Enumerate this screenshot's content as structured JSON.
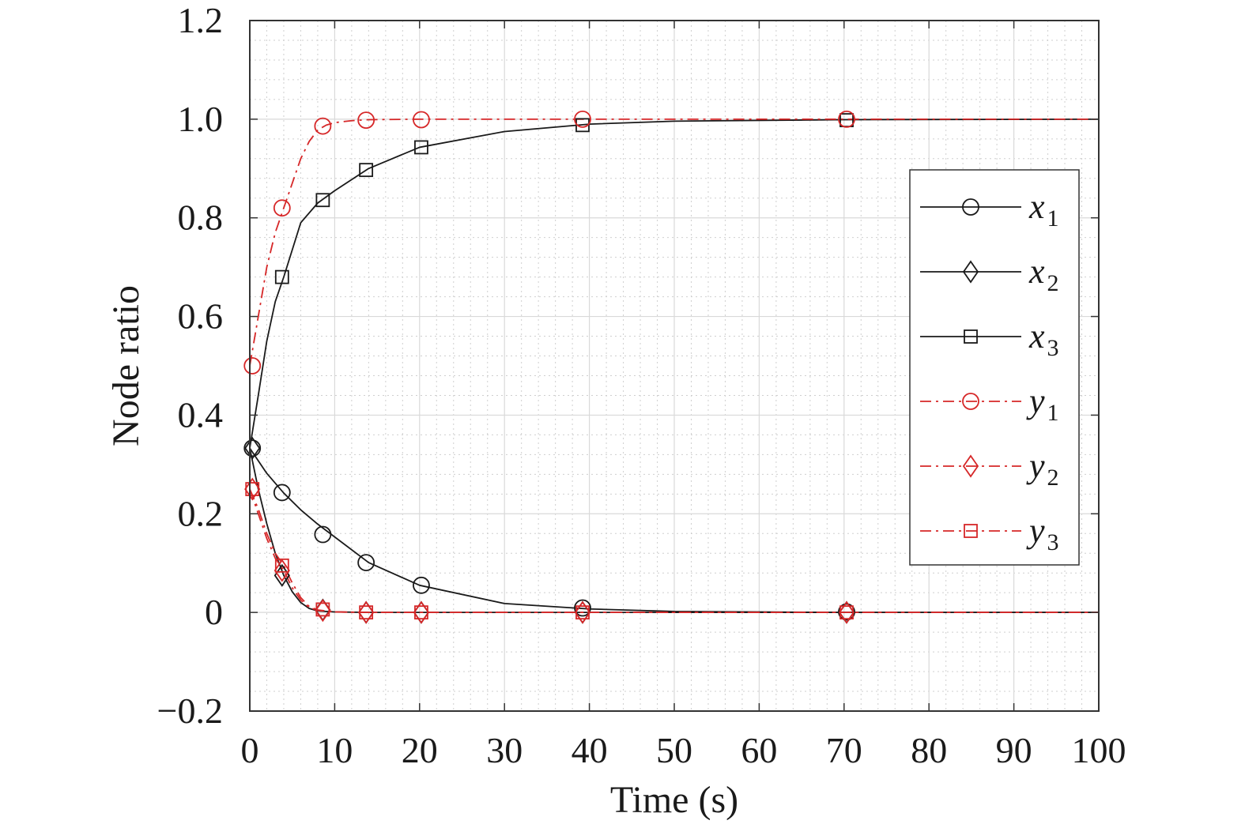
{
  "chart_data": {
    "type": "line",
    "xlabel": "Time (s)",
    "ylabel": "Node ratio",
    "xlim": [
      0,
      100
    ],
    "ylim": [
      -0.2,
      1.2
    ],
    "xticks": [
      0,
      10,
      20,
      30,
      40,
      50,
      60,
      70,
      80,
      90,
      100
    ],
    "yticks": [
      -0.2,
      0,
      0.2,
      0.4,
      0.6,
      0.8,
      1.0,
      1.2
    ],
    "xtick_labels": [
      "0",
      "10",
      "20",
      "30",
      "40",
      "50",
      "60",
      "70",
      "80",
      "90",
      "100"
    ],
    "ytick_labels": [
      "−0.2",
      "0",
      "0.2",
      "0.4",
      "0.6",
      "0.8",
      "1.0",
      "1.2"
    ],
    "grid": "major and minor",
    "legend_position": "right",
    "colors": {
      "black": "#1a1a1a",
      "red": "#d62728",
      "grid_major": "#d9d9d9",
      "grid_minor": "#cfcfcf"
    },
    "series": [
      {
        "name": "x",
        "subscript": "1",
        "color": "#1a1a1a",
        "dash": "solid",
        "marker": "circle",
        "x": [
          0,
          2,
          4,
          6,
          8,
          10,
          14,
          20,
          30,
          40,
          50,
          60,
          70,
          80,
          90,
          100
        ],
        "y": [
          0.333,
          0.282,
          0.242,
          0.208,
          0.179,
          0.153,
          0.101,
          0.055,
          0.018,
          0.007,
          0.002,
          0.001,
          0.0,
          0.0,
          0.0,
          0.0
        ],
        "marker_x": [
          0.3,
          3.8,
          8.6,
          13.7,
          20.2,
          39.2,
          70.3
        ],
        "marker_y": [
          0.333,
          0.243,
          0.158,
          0.101,
          0.055,
          0.009,
          0.001
        ]
      },
      {
        "name": "x",
        "subscript": "2",
        "color": "#1a1a1a",
        "dash": "solid",
        "marker": "diamond",
        "x": [
          0,
          1,
          2,
          3,
          4,
          5,
          6,
          7,
          8,
          10,
          14,
          20,
          40,
          70,
          100
        ],
        "y": [
          0.333,
          0.25,
          0.18,
          0.12,
          0.075,
          0.042,
          0.02,
          0.008,
          0.003,
          0.001,
          0.0,
          0.0,
          0.0,
          0.0,
          0.0
        ],
        "marker_x": [
          0.3,
          3.8,
          8.6,
          13.7,
          20.2,
          39.2,
          70.3
        ],
        "marker_y": [
          0.333,
          0.075,
          0.005,
          0.0,
          0.0,
          0.0,
          0.0
        ]
      },
      {
        "name": "x",
        "subscript": "3",
        "color": "#1a1a1a",
        "dash": "solid",
        "marker": "square",
        "x": [
          0,
          1,
          2,
          3,
          4,
          6,
          8,
          10,
          14,
          20,
          30,
          40,
          50,
          70,
          100
        ],
        "y": [
          0.333,
          0.44,
          0.55,
          0.63,
          0.68,
          0.79,
          0.83,
          0.855,
          0.9,
          0.943,
          0.975,
          0.99,
          0.996,
          0.999,
          1.0
        ],
        "marker_x": [
          3.8,
          8.6,
          13.7,
          20.2,
          39.2,
          70.3
        ],
        "marker_y": [
          0.68,
          0.836,
          0.897,
          0.943,
          0.988,
          0.998
        ]
      },
      {
        "name": "y",
        "subscript": "1",
        "color": "#d62728",
        "dash": "dashdot",
        "marker": "circle",
        "x": [
          0,
          1,
          2,
          3,
          4,
          5,
          6,
          7,
          8,
          9,
          10,
          12,
          14,
          20,
          40,
          70,
          100
        ],
        "y": [
          0.5,
          0.6,
          0.7,
          0.77,
          0.82,
          0.87,
          0.92,
          0.955,
          0.978,
          0.988,
          0.993,
          0.997,
          0.999,
          1.0,
          1.0,
          1.0,
          1.0
        ],
        "marker_x": [
          0.3,
          3.8,
          8.6,
          13.7,
          20.2,
          39.2,
          70.3
        ],
        "marker_y": [
          0.5,
          0.82,
          0.986,
          0.998,
          0.999,
          1.0,
          1.0
        ]
      },
      {
        "name": "y",
        "subscript": "2",
        "color": "#d62728",
        "dash": "dashdot",
        "marker": "diamond",
        "x": [
          0,
          1,
          2,
          3,
          4,
          5,
          6,
          7,
          8,
          10,
          14,
          20,
          40,
          70,
          100
        ],
        "y": [
          0.25,
          0.2,
          0.15,
          0.11,
          0.085,
          0.05,
          0.025,
          0.01,
          0.004,
          0.001,
          0.0,
          0.0,
          0.0,
          0.0,
          0.0
        ],
        "marker_x": [
          0.3,
          3.8,
          8.6,
          13.7,
          20.2,
          39.2,
          70.3
        ],
        "marker_y": [
          0.25,
          0.085,
          0.004,
          0.0,
          0.0,
          0.0,
          0.0
        ]
      },
      {
        "name": "y",
        "subscript": "3",
        "color": "#d62728",
        "dash": "dashdot",
        "marker": "square",
        "x": [
          0,
          1,
          2,
          3,
          4,
          5,
          6,
          7,
          8,
          10,
          14,
          20,
          40,
          70,
          100
        ],
        "y": [
          0.25,
          0.21,
          0.16,
          0.12,
          0.095,
          0.06,
          0.03,
          0.012,
          0.005,
          0.001,
          0.0,
          0.0,
          0.0,
          0.0,
          0.0
        ],
        "marker_x": [
          0.3,
          3.8,
          8.6,
          13.7,
          20.2,
          39.2,
          70.3
        ],
        "marker_y": [
          0.25,
          0.095,
          0.006,
          0.0,
          0.0,
          0.0,
          0.0
        ]
      }
    ]
  }
}
